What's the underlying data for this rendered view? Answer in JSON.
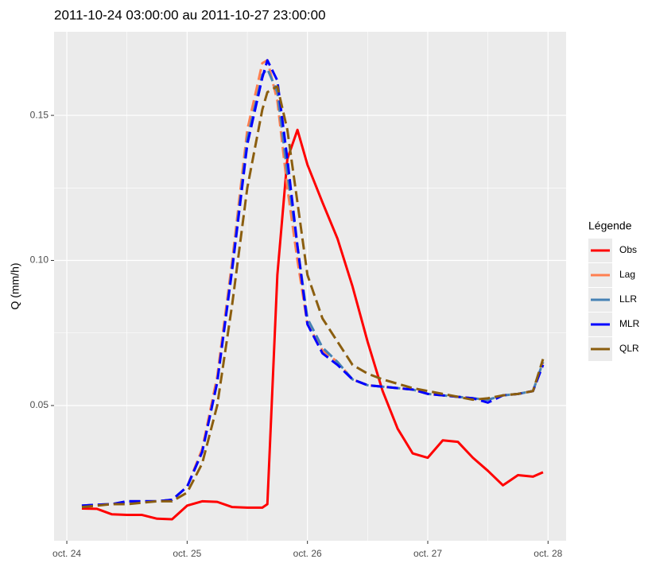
{
  "chart_data": {
    "type": "line",
    "title": "2011-10-24 03:00:00 au 2011-10-27 23:00:00",
    "y_label": "Q (mm/h)",
    "legend_title": "Légende",
    "legend_position": "right",
    "grid": true,
    "minor_grid": true,
    "x": [
      24.125,
      24.25,
      24.375,
      24.5,
      24.625,
      24.75,
      24.875,
      25,
      25.125,
      25.25,
      25.375,
      25.5,
      25.625,
      25.667,
      25.75,
      25.833,
      25.917,
      26,
      26.125,
      26.25,
      26.375,
      26.5,
      26.625,
      26.75,
      26.875,
      27,
      27.125,
      27.25,
      27.375,
      27.5,
      27.625,
      27.75,
      27.875,
      27.958
    ],
    "series": [
      {
        "name": "Obs",
        "color": "#ff0000",
        "linetype": "solid",
        "values": [
          0.0145,
          0.0144,
          0.0125,
          0.0123,
          0.0123,
          0.011,
          0.0108,
          0.0155,
          0.017,
          0.0168,
          0.015,
          0.0148,
          0.0148,
          0.016,
          0.095,
          0.135,
          0.145,
          0.133,
          0.12,
          0.1075,
          0.091,
          0.072,
          0.055,
          0.042,
          0.0335,
          0.032,
          0.038,
          0.0375,
          0.032,
          0.0275,
          0.0225,
          0.026,
          0.0255,
          0.027
        ]
      },
      {
        "name": "Lag",
        "color": "#ff7f50",
        "linetype": "dashed",
        "values": [
          0.0155,
          0.0158,
          0.016,
          0.017,
          0.017,
          0.017,
          0.0175,
          0.022,
          0.035,
          0.06,
          0.1,
          0.145,
          0.168,
          0.169,
          0.155,
          0.125,
          0.1,
          0.078,
          0.069,
          0.065,
          0.059,
          0.057,
          0.0565,
          0.056,
          0.0555,
          0.054,
          0.0535,
          0.053,
          0.0525,
          0.052,
          0.0535,
          0.054,
          0.055,
          0.065
        ]
      },
      {
        "name": "LLR",
        "color": "#4682b4",
        "linetype": "dashed",
        "values": [
          0.0155,
          0.0158,
          0.016,
          0.017,
          0.017,
          0.017,
          0.0175,
          0.022,
          0.034,
          0.058,
          0.098,
          0.142,
          0.164,
          0.166,
          0.158,
          0.13,
          0.105,
          0.08,
          0.07,
          0.065,
          0.059,
          0.057,
          0.0565,
          0.056,
          0.0555,
          0.054,
          0.0535,
          0.053,
          0.0525,
          0.052,
          0.0535,
          0.054,
          0.055,
          0.065
        ]
      },
      {
        "name": "MLR",
        "color": "#0000ff",
        "linetype": "dashed",
        "values": [
          0.0155,
          0.0158,
          0.016,
          0.017,
          0.017,
          0.017,
          0.0175,
          0.022,
          0.034,
          0.058,
          0.097,
          0.14,
          0.163,
          0.169,
          0.162,
          0.135,
          0.105,
          0.078,
          0.068,
          0.064,
          0.059,
          0.057,
          0.0565,
          0.056,
          0.0555,
          0.054,
          0.0535,
          0.053,
          0.0525,
          0.051,
          0.0535,
          0.054,
          0.055,
          0.064
        ]
      },
      {
        "name": "QLR",
        "color": "#8b5e0f",
        "linetype": "dashed",
        "values": [
          0.015,
          0.0155,
          0.016,
          0.016,
          0.0165,
          0.017,
          0.017,
          0.02,
          0.03,
          0.05,
          0.085,
          0.125,
          0.152,
          0.158,
          0.16,
          0.145,
          0.12,
          0.095,
          0.08,
          0.072,
          0.064,
          0.061,
          0.059,
          0.0575,
          0.056,
          0.055,
          0.054,
          0.053,
          0.052,
          0.0525,
          0.0535,
          0.054,
          0.055,
          0.066
        ]
      }
    ],
    "xlim": [
      23.894,
      28.15
    ],
    "xticks": [
      {
        "value": 24,
        "label": "oct. 24"
      },
      {
        "value": 25,
        "label": "oct. 25"
      },
      {
        "value": 26,
        "label": "oct. 26"
      },
      {
        "value": 27,
        "label": "oct. 27"
      },
      {
        "value": 28,
        "label": "oct. 28"
      }
    ],
    "ylim": [
      0.0034,
      0.1788
    ],
    "yticks": [
      0.05,
      {
        "value": 0.1,
        "label": "0.10"
      },
      0.15
    ]
  }
}
